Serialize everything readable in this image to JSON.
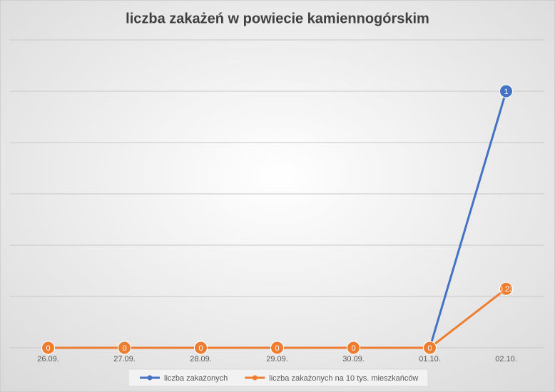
{
  "chart_data": {
    "type": "line",
    "title": "liczba zakażeń w powiecie kamiennogórskim",
    "categories": [
      "26.09.",
      "27.09.",
      "28.09.",
      "29.09.",
      "30.09.",
      "01.10.",
      "02.10."
    ],
    "series": [
      {
        "name": "liczba zakażonych",
        "color": "#4472c4",
        "values": [
          0,
          0,
          0,
          0,
          0,
          0,
          1
        ]
      },
      {
        "name": "liczba zakażonych na 10 tys. mieszkańców",
        "color": "#ed7d31",
        "values": [
          0,
          0,
          0,
          0,
          0,
          0,
          0.23
        ]
      }
    ],
    "ylim": [
      0,
      1.2
    ],
    "yticks": [
      0,
      0.2,
      0.4,
      0.6,
      0.8,
      1,
      1.2
    ],
    "grid": true,
    "legend": "bottom"
  }
}
